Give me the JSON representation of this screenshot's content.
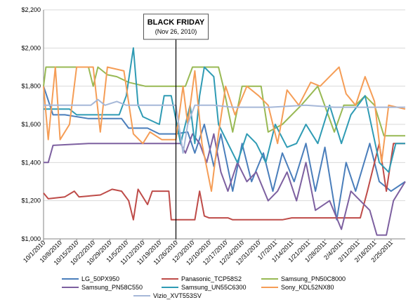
{
  "chart_data": {
    "type": "line",
    "title": "",
    "xlabel": "",
    "ylabel": "",
    "ylim": [
      1000,
      2200
    ],
    "y_ticks": [
      "$1,000",
      "$1,200",
      "$1,400",
      "$1,600",
      "$1,800",
      "$2,000",
      "$2,200"
    ],
    "y_tick_values": [
      1000,
      1200,
      1400,
      1600,
      1800,
      2000,
      2200
    ],
    "x_ticks": [
      "10/1/2010",
      "10/8/2010",
      "10/15/2010",
      "10/22/2010",
      "10/29/2010",
      "11/5/2010",
      "11/12/2010",
      "11/19/2010",
      "11/26/2010",
      "12/3/2010",
      "12/10/2010",
      "12/17/2010",
      "12/24/2010",
      "12/31/2010",
      "1/7/2011",
      "1/14/2011",
      "1/21/2011",
      "1/28/2011",
      "2/4/2011",
      "2/11/2011",
      "2/18/2011",
      "2/25/2011"
    ],
    "x_domain": [
      "10/1/2010",
      "3/3/2011"
    ],
    "grid": "horizontal",
    "legend_position": "bottom",
    "annotation": {
      "title": "BLACK FRIDAY",
      "subtitle": "(Nov 26, 2010)",
      "x": "11/26/2010"
    },
    "series": [
      {
        "name": "LG_50PX950",
        "color": "#4a7ebb",
        "points": [
          [
            "10/1/2010",
            1800
          ],
          [
            "10/5/2010",
            1650
          ],
          [
            "10/10/2010",
            1650
          ],
          [
            "10/20/2010",
            1630
          ],
          [
            "11/3/2010",
            1630
          ],
          [
            "11/6/2010",
            1580
          ],
          [
            "11/14/2010",
            1580
          ],
          [
            "11/19/2010",
            1550
          ],
          [
            "11/26/2010",
            1550
          ],
          [
            "12/1/2010",
            1560
          ],
          [
            "12/4/2010",
            1450
          ],
          [
            "12/8/2010",
            1600
          ],
          [
            "12/12/2010",
            1380
          ],
          [
            "12/15/2010",
            1550
          ],
          [
            "12/20/2010",
            1250
          ],
          [
            "12/24/2010",
            1500
          ],
          [
            "12/28/2010",
            1300
          ],
          [
            "1/2/2011",
            1450
          ],
          [
            "1/6/2011",
            1250
          ],
          [
            "1/10/2011",
            1450
          ],
          [
            "1/15/2011",
            1300
          ],
          [
            "1/20/2011",
            1500
          ],
          [
            "1/24/2011",
            1250
          ],
          [
            "1/28/2011",
            1480
          ],
          [
            "2/2/2011",
            1100
          ],
          [
            "2/6/2011",
            1400
          ],
          [
            "2/10/2011",
            1250
          ],
          [
            "2/16/2011",
            1500
          ],
          [
            "2/20/2011",
            1300
          ],
          [
            "2/25/2011",
            1250
          ],
          [
            "3/3/2011",
            1300
          ]
        ]
      },
      {
        "name": "Panasonic_TCP58S2",
        "color": "#be4b48",
        "points": [
          [
            "10/1/2010",
            1240
          ],
          [
            "10/3/2010",
            1210
          ],
          [
            "10/10/2010",
            1220
          ],
          [
            "10/14/2010",
            1250
          ],
          [
            "10/16/2010",
            1220
          ],
          [
            "10/25/2010",
            1230
          ],
          [
            "10/30/2010",
            1260
          ],
          [
            "11/3/2010",
            1250
          ],
          [
            "11/6/2010",
            1200
          ],
          [
            "11/8/2010",
            1100
          ],
          [
            "11/10/2010",
            1260
          ],
          [
            "11/14/2010",
            1180
          ],
          [
            "11/16/2010",
            1250
          ],
          [
            "11/23/2010",
            1250
          ],
          [
            "11/24/2010",
            1100
          ],
          [
            "12/4/2010",
            1100
          ],
          [
            "12/6/2010",
            1250
          ],
          [
            "12/8/2010",
            1120
          ],
          [
            "12/10/2010",
            1110
          ],
          [
            "12/18/2010",
            1110
          ],
          [
            "12/20/2010",
            1100
          ],
          [
            "1/10/2011",
            1100
          ],
          [
            "1/14/2011",
            1110
          ],
          [
            "2/12/2011",
            1110
          ],
          [
            "2/15/2011",
            1250
          ],
          [
            "2/20/2011",
            1500
          ],
          [
            "2/23/2011",
            1250
          ],
          [
            "2/26/2011",
            1500
          ],
          [
            "3/3/2011",
            1500
          ]
        ]
      },
      {
        "name": "Samsung_PN50C8000",
        "color": "#98b954",
        "points": [
          [
            "10/1/2010",
            1800
          ],
          [
            "10/2/2010",
            1900
          ],
          [
            "10/20/2010",
            1900
          ],
          [
            "10/22/2010",
            1800
          ],
          [
            "10/24/2010",
            1900
          ],
          [
            "10/28/2010",
            1860
          ],
          [
            "11/1/2010",
            1850
          ],
          [
            "11/6/2010",
            1820
          ],
          [
            "11/13/2010",
            1800
          ],
          [
            "11/20/2010",
            1800
          ],
          [
            "11/30/2010",
            1800
          ],
          [
            "12/3/2010",
            1900
          ],
          [
            "12/14/2010",
            1900
          ],
          [
            "12/16/2010",
            1800
          ],
          [
            "12/20/2010",
            1560
          ],
          [
            "12/24/2010",
            1800
          ],
          [
            "1/1/2011",
            1800
          ],
          [
            "1/4/2011",
            1560
          ],
          [
            "1/10/2011",
            1600
          ],
          [
            "1/18/2011",
            1700
          ],
          [
            "1/25/2011",
            1800
          ],
          [
            "2/1/2011",
            1560
          ],
          [
            "2/5/2011",
            1700
          ],
          [
            "2/10/2011",
            1700
          ],
          [
            "2/14/2011",
            1750
          ],
          [
            "2/18/2011",
            1700
          ],
          [
            "2/22/2011",
            1540
          ],
          [
            "3/3/2011",
            1540
          ]
        ]
      },
      {
        "name": "Samsung_PN58C550",
        "color": "#7d60a0",
        "points": [
          [
            "10/1/2010",
            1400
          ],
          [
            "10/3/2010",
            1400
          ],
          [
            "10/5/2010",
            1490
          ],
          [
            "10/20/2010",
            1500
          ],
          [
            "11/20/2010",
            1500
          ],
          [
            "11/28/2010",
            1500
          ],
          [
            "11/30/2010",
            1450
          ],
          [
            "12/3/2010",
            1550
          ],
          [
            "12/6/2010",
            1500
          ],
          [
            "12/9/2010",
            1400
          ],
          [
            "12/12/2010",
            1550
          ],
          [
            "12/15/2010",
            1350
          ],
          [
            "12/18/2010",
            1250
          ],
          [
            "12/22/2010",
            1400
          ],
          [
            "12/26/2010",
            1300
          ],
          [
            "12/30/2010",
            1350
          ],
          [
            "1/4/2011",
            1200
          ],
          [
            "1/8/2011",
            1250
          ],
          [
            "1/12/2011",
            1350
          ],
          [
            "1/16/2011",
            1200
          ],
          [
            "1/20/2011",
            1400
          ],
          [
            "1/24/2011",
            1150
          ],
          [
            "1/30/2011",
            1200
          ],
          [
            "2/4/2011",
            1050
          ],
          [
            "2/8/2011",
            1250
          ],
          [
            "2/12/2011",
            1200
          ],
          [
            "2/16/2011",
            1150
          ],
          [
            "2/19/2011",
            1020
          ],
          [
            "2/23/2011",
            1020
          ],
          [
            "2/26/2011",
            1200
          ],
          [
            "3/3/2011",
            1300
          ]
        ]
      },
      {
        "name": "Samsung_UN55C6300",
        "color": "#2f9bb4",
        "points": [
          [
            "10/1/2010",
            1680
          ],
          [
            "10/12/2010",
            1680
          ],
          [
            "10/15/2010",
            1650
          ],
          [
            "10/28/2010",
            1650
          ],
          [
            "11/2/2010",
            1650
          ],
          [
            "11/5/2010",
            1750
          ],
          [
            "11/8/2010",
            2000
          ],
          [
            "11/10/2010",
            1700
          ],
          [
            "11/12/2010",
            1640
          ],
          [
            "11/19/2010",
            1600
          ],
          [
            "11/21/2010",
            1750
          ],
          [
            "11/24/2010",
            1750
          ],
          [
            "11/28/2010",
            1500
          ],
          [
            "12/2/2010",
            1700
          ],
          [
            "12/4/2010",
            1500
          ],
          [
            "12/6/2010",
            1750
          ],
          [
            "12/8/2010",
            1900
          ],
          [
            "12/12/2010",
            1850
          ],
          [
            "12/14/2010",
            1600
          ],
          [
            "12/18/2010",
            1500
          ],
          [
            "12/22/2010",
            1400
          ],
          [
            "12/26/2010",
            1550
          ],
          [
            "12/30/2010",
            1500
          ],
          [
            "1/3/2011",
            1400
          ],
          [
            "1/7/2011",
            1600
          ],
          [
            "1/12/2011",
            1480
          ],
          [
            "1/16/2011",
            1500
          ],
          [
            "1/20/2011",
            1600
          ],
          [
            "1/25/2011",
            1500
          ],
          [
            "1/30/2011",
            1700
          ],
          [
            "2/4/2011",
            1500
          ],
          [
            "2/8/2011",
            1650
          ],
          [
            "2/14/2011",
            1750
          ],
          [
            "2/20/2011",
            1400
          ],
          [
            "2/24/2011",
            1350
          ],
          [
            "2/27/2011",
            1500
          ],
          [
            "3/3/2011",
            1500
          ]
        ]
      },
      {
        "name": "Sony_KDL52NX80",
        "color": "#f59d56",
        "points": [
          [
            "10/1/2010",
            1800
          ],
          [
            "10/3/2010",
            1520
          ],
          [
            "10/6/2010",
            1900
          ],
          [
            "10/8/2010",
            1520
          ],
          [
            "10/12/2010",
            1600
          ],
          [
            "10/15/2010",
            1900
          ],
          [
            "10/22/2010",
            1900
          ],
          [
            "10/25/2010",
            1560
          ],
          [
            "10/28/2010",
            1900
          ],
          [
            "11/4/2010",
            1880
          ],
          [
            "11/8/2010",
            1550
          ],
          [
            "11/12/2010",
            1500
          ],
          [
            "11/15/2010",
            1560
          ],
          [
            "11/20/2010",
            1520
          ],
          [
            "11/26/2010",
            1520
          ],
          [
            "11/29/2010",
            1800
          ],
          [
            "12/1/2010",
            1600
          ],
          [
            "12/4/2010",
            1880
          ],
          [
            "12/7/2010",
            1500
          ],
          [
            "12/11/2010",
            1250
          ],
          [
            "12/14/2010",
            1550
          ],
          [
            "12/17/2010",
            1800
          ],
          [
            "12/21/2010",
            1650
          ],
          [
            "12/26/2010",
            1800
          ],
          [
            "12/31/2010",
            1750
          ],
          [
            "1/4/2011",
            1700
          ],
          [
            "1/8/2011",
            1500
          ],
          [
            "1/12/2011",
            1780
          ],
          [
            "1/17/2011",
            1700
          ],
          [
            "1/22/2011",
            1820
          ],
          [
            "1/26/2011",
            1800
          ],
          [
            "1/30/2011",
            1850
          ],
          [
            "2/3/2011",
            1900
          ],
          [
            "2/6/2011",
            1760
          ],
          [
            "2/10/2011",
            1700
          ],
          [
            "2/14/2011",
            1850
          ],
          [
            "2/18/2011",
            1720
          ],
          [
            "2/21/2011",
            1400
          ],
          [
            "2/24/2011",
            1700
          ],
          [
            "3/3/2011",
            1680
          ]
        ]
      },
      {
        "name": "Vizio_XVT553SV",
        "color": "#a6b8d8",
        "points": [
          [
            "10/1/2010",
            1700
          ],
          [
            "10/21/2010",
            1700
          ],
          [
            "10/24/2010",
            1730
          ],
          [
            "10/27/2010",
            1700
          ],
          [
            "11/1/2010",
            1720
          ],
          [
            "11/5/2010",
            1700
          ],
          [
            "11/26/2010",
            1700
          ],
          [
            "11/29/2010",
            1450
          ],
          [
            "12/1/2010",
            1600
          ],
          [
            "12/4/2010",
            1700
          ],
          [
            "12/12/2010",
            1700
          ],
          [
            "12/20/2010",
            1690
          ],
          [
            "1/5/2011",
            1690
          ],
          [
            "1/20/2011",
            1700
          ],
          [
            "2/1/2011",
            1690
          ],
          [
            "3/3/2011",
            1690
          ]
        ]
      }
    ]
  }
}
